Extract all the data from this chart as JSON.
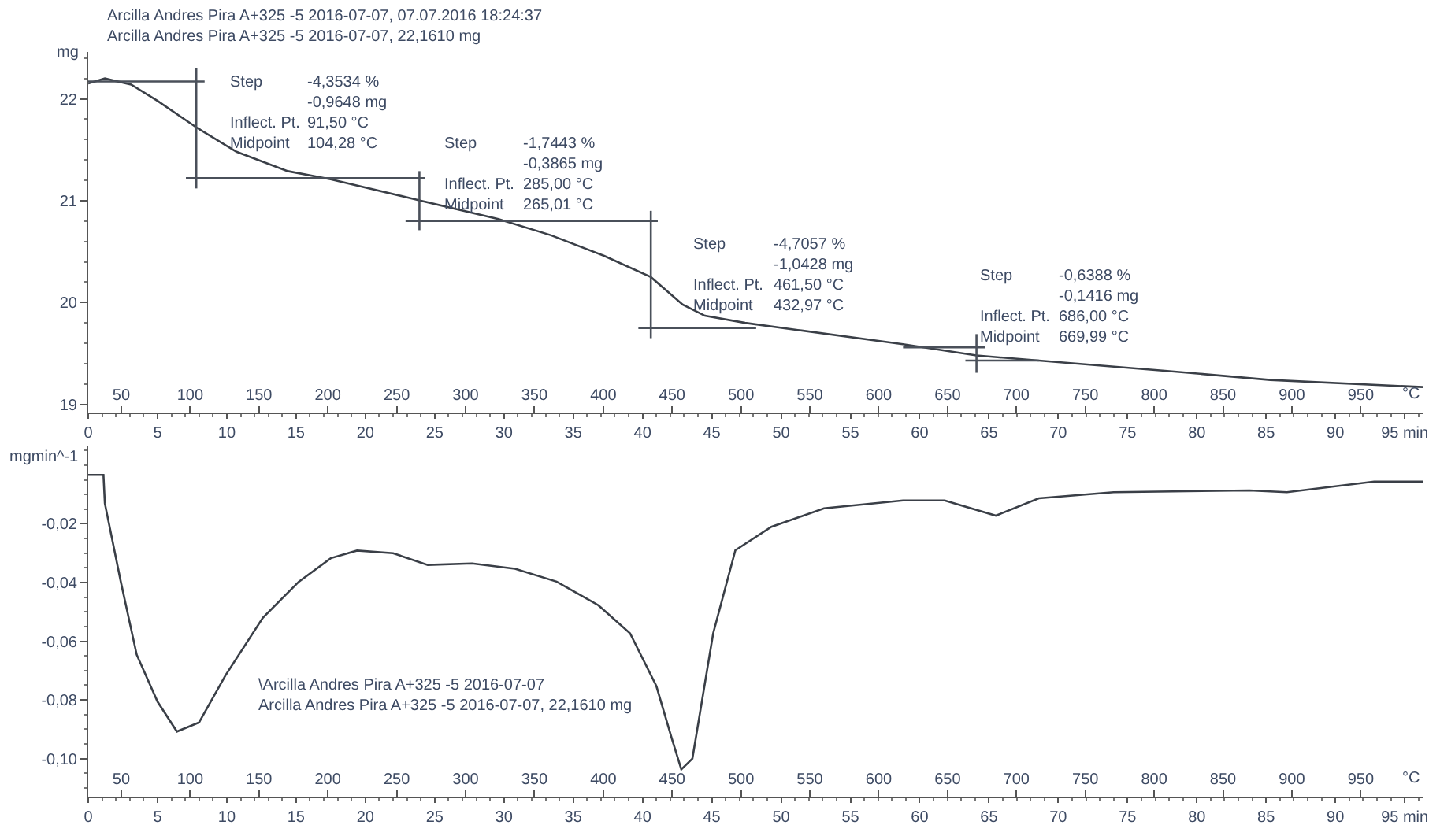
{
  "chart_data": [
    {
      "type": "line",
      "title": "Arcilla Andres Pira A+325 -5 2016-07-07, 07.07.2016 18:24:37\nArcilla Andres Pira A+325 -5 2016-07-07, 22,1610 mg",
      "ylabel": "mg",
      "x2label": "°C",
      "xlim": [
        0,
        96.3
      ],
      "xticks": [
        0,
        5,
        10,
        15,
        20,
        25,
        30,
        35,
        40,
        45,
        50,
        55,
        60,
        65,
        70,
        75,
        80,
        85,
        90,
        {
          "value": 95,
          "label": "95 min"
        }
      ],
      "x2lim": [
        26,
        995
      ],
      "x2ticks": [
        50,
        100,
        150,
        200,
        250,
        300,
        350,
        400,
        450,
        500,
        550,
        600,
        650,
        700,
        750,
        800,
        850,
        900,
        950
      ],
      "ylim": [
        18.92,
        22.46
      ],
      "yticks": [
        19,
        20,
        21,
        22
      ],
      "grid": false,
      "marker": "none",
      "line_style": "solid",
      "series": [
        {
          "color": "#3a3f47",
          "x": [
            0,
            1.2,
            3.1,
            5.0,
            7.8,
            10.7,
            14.4,
            17.5,
            24.0,
            29.6,
            33.4,
            37.2,
            40.6,
            42.9,
            44.5,
            47.4,
            51.2,
            58.8,
            64.1,
            68.6,
            77.7,
            85.3,
            96.3
          ],
          "values": [
            22.15,
            22.2,
            22.14,
            21.98,
            21.72,
            21.48,
            21.29,
            21.21,
            21.0,
            20.82,
            20.66,
            20.46,
            20.25,
            19.98,
            19.87,
            19.8,
            19.73,
            19.59,
            19.48,
            19.43,
            19.33,
            19.24,
            19.17
          ]
        },
        {
          "color": "#4a505a",
          "x": [
            0,
            8.4,
            null,
            7.8,
            7.8,
            null,
            7.05,
            24.3
          ],
          "values": [
            22.17,
            22.17,
            null,
            22.3,
            21.12,
            null,
            21.22,
            21.22
          ]
        },
        {
          "color": "#4a505a",
          "x": [
            23.9,
            23.9,
            null,
            22.9,
            41.1
          ],
          "values": [
            21.29,
            20.71,
            null,
            20.8,
            20.8
          ]
        },
        {
          "color": "#4a505a",
          "x": [
            40.6,
            40.6,
            null,
            39.7,
            48.2
          ],
          "values": [
            20.9,
            19.65,
            null,
            19.75,
            19.75
          ]
        },
        {
          "color": "#4a505a",
          "x": [
            64.1,
            64.1,
            null,
            58.8,
            64.7,
            null,
            63.3,
            68.6
          ],
          "values": [
            19.69,
            19.31,
            null,
            19.56,
            19.56,
            null,
            19.43,
            19.43
          ]
        }
      ],
      "annotations": [
        "Step\nInflect. Pt.\nMidpoint",
        "-4,3534 %\n-0,9648 mg\n91,50 °C\n104,28 °C",
        "Step\nInflect. Pt.\nMidpoint",
        "-1,7443 %\n-0,3865 mg\n285,00 °C\n265,01 °C",
        "Step\nInflect. Pt.\nMidpoint",
        "-4,7057 %\n-1,0428 mg\n461,50 °C\n432,97 °C",
        "Step\nInflect. Pt.\nMidpoint",
        "-0,6388 %\n-0,1416 mg\n686,00 °C\n669,99 °C"
      ]
    },
    {
      "type": "line",
      "ylabel": "mgmin^-1",
      "x2label": "°C",
      "xlim": [
        0,
        96.3
      ],
      "xticks": [
        0,
        5,
        10,
        15,
        20,
        25,
        30,
        35,
        40,
        45,
        50,
        55,
        60,
        65,
        70,
        75,
        80,
        85,
        90,
        {
          "value": 95,
          "label": "95 min"
        }
      ],
      "x2lim": [
        26,
        995
      ],
      "x2ticks": [
        50,
        100,
        150,
        200,
        250,
        300,
        350,
        400,
        450,
        500,
        550,
        600,
        650,
        700,
        750,
        800,
        850,
        900,
        950
      ],
      "ylim": [
        -0.113,
        0.0067
      ],
      "yticks": [
        {
          "value": -0.1,
          "label": "-0,10"
        },
        {
          "value": -0.08,
          "label": "-0,08"
        },
        {
          "value": -0.06,
          "label": "-0,06"
        },
        {
          "value": -0.04,
          "label": "-0,04"
        },
        {
          "value": -0.02,
          "label": "-0,02"
        }
      ],
      "grid": false,
      "marker": "none",
      "line_style": "solid",
      "series": [
        {
          "color": "#3a3f47",
          "x": [
            0,
            1.1,
            1.2,
            2.35,
            3.5,
            5.0,
            6.4,
            8.0,
            9.9,
            12.6,
            15.2,
            17.5,
            19.4,
            22.0,
            24.5,
            27.7,
            30.8,
            33.8,
            36.8,
            39.1,
            41.0,
            42.1,
            42.8,
            43.6,
            45.1,
            46.7,
            49.3,
            53.1,
            58.8,
            61.8,
            65.5,
            68.6,
            74.0,
            83.8,
            86.5,
            92.8,
            96.3
          ],
          "values": [
            -0.0033,
            -0.0033,
            -0.013,
            -0.0397,
            -0.0646,
            -0.0806,
            -0.0908,
            -0.0877,
            -0.0717,
            -0.052,
            -0.0397,
            -0.0317,
            -0.0291,
            -0.03,
            -0.034,
            -0.0335,
            -0.0353,
            -0.0397,
            -0.0477,
            -0.0573,
            -0.0753,
            -0.093,
            -0.1037,
            -0.1,
            -0.0573,
            -0.029,
            -0.021,
            -0.0147,
            -0.012,
            -0.012,
            -0.0172,
            -0.0113,
            -0.0092,
            -0.0086,
            -0.0092,
            -0.0056,
            -0.0056
          ]
        }
      ],
      "annotations": [
        "\\Arcilla Andres Pira A+325 -5 2016-07-07\nArcilla Andres Pira A+325 -5 2016-07-07, 22,1610 mg"
      ]
    }
  ]
}
